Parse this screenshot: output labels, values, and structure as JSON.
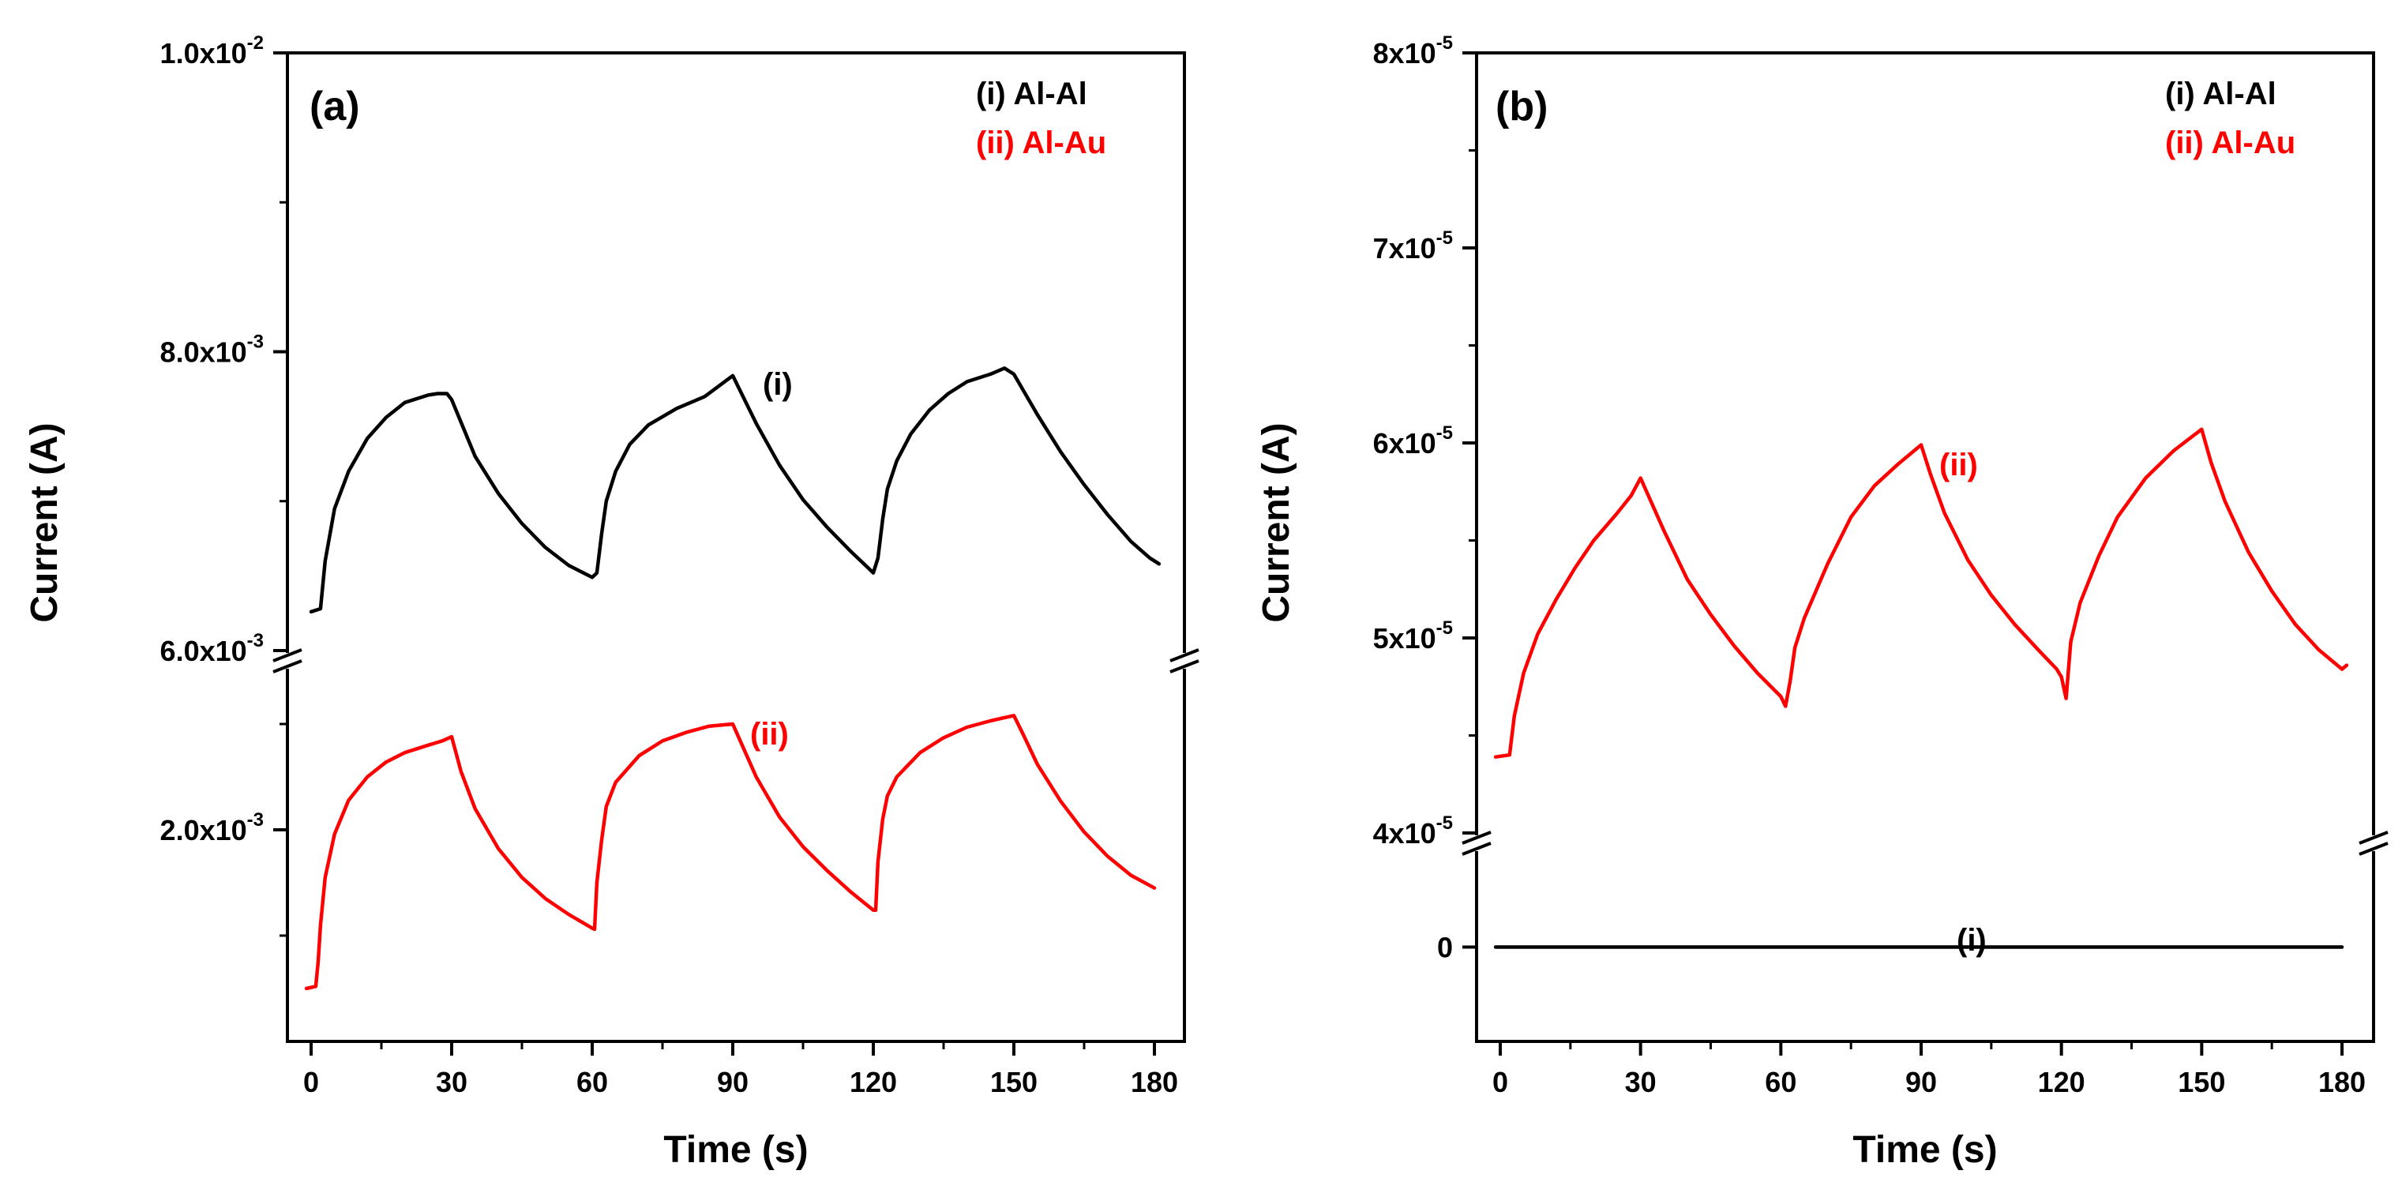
{
  "chart_data": [
    {
      "type": "line",
      "panel": "(a)",
      "xlabel": "Time (s)",
      "ylabel": "Current (A)",
      "x_ticks": [
        "0",
        "30",
        "60",
        "90",
        "120",
        "150",
        "180"
      ],
      "xlim": [
        -3,
        183
      ],
      "y_axis_break": true,
      "upper_segment": {
        "ylim": [
          0.006,
          0.01
        ],
        "tick_values": [
          0.006,
          0.008,
          0.01
        ],
        "tick_labels": [
          "6.0x10",
          "8.0x10",
          "1.0x10"
        ],
        "tick_exponents": [
          "-3",
          "-3",
          "-2"
        ]
      },
      "lower_segment": {
        "ylim": [
          0.0,
          0.0035
        ],
        "tick_values": [
          0.002
        ],
        "tick_labels": [
          "2.0x10"
        ],
        "tick_exponents": [
          "-3"
        ]
      },
      "legend": [
        {
          "label": "(i)  Al-Al",
          "color": "#000000"
        },
        {
          "label": "(ii) Al-Au",
          "color": "#ff0000"
        }
      ],
      "series": [
        {
          "name": "(i) Al-Al",
          "curve_label": "(i)",
          "color": "#000000",
          "segment": "upper",
          "x": [
            0,
            2,
            3,
            5,
            8,
            12,
            16,
            20,
            25,
            27,
            29,
            30,
            35,
            40,
            45,
            50,
            55,
            60,
            61,
            62,
            63,
            65,
            68,
            72,
            78,
            84,
            90,
            95,
            100,
            105,
            110,
            115,
            119,
            120,
            121,
            122,
            123,
            125,
            128,
            132,
            136,
            140,
            145,
            148,
            150,
            155,
            160,
            165,
            170,
            175,
            179,
            181
          ],
          "y": [
            0.00626,
            0.00628,
            0.0066,
            0.00695,
            0.0072,
            0.00742,
            0.00756,
            0.00766,
            0.00771,
            0.00772,
            0.00772,
            0.00768,
            0.0073,
            0.00705,
            0.00685,
            0.00669,
            0.00657,
            0.00649,
            0.00652,
            0.00678,
            0.007,
            0.0072,
            0.00738,
            0.00751,
            0.00762,
            0.0077,
            0.00784,
            0.00752,
            0.00724,
            0.00701,
            0.00683,
            0.00667,
            0.00655,
            0.00652,
            0.00662,
            0.00688,
            0.00708,
            0.00727,
            0.00745,
            0.00761,
            0.00772,
            0.0078,
            0.00785,
            0.00789,
            0.00785,
            0.00758,
            0.00733,
            0.00711,
            0.00691,
            0.00673,
            0.00662,
            0.00658
          ]
        },
        {
          "name": "(ii) Al-Au",
          "curve_label": "(ii)",
          "color": "#ff0000",
          "segment": "lower",
          "x": [
            -1,
            1,
            1.5,
            2,
            3,
            5,
            8,
            12,
            16,
            20,
            25,
            28,
            30,
            32,
            35,
            40,
            45,
            50,
            55,
            60,
            60.5,
            61,
            62,
            63,
            65,
            70,
            75,
            80,
            85,
            90,
            92,
            95,
            100,
            105,
            110,
            115,
            120,
            120.5,
            121,
            122,
            123,
            125,
            130,
            135,
            140,
            145,
            150,
            152,
            155,
            160,
            165,
            170,
            175,
            180
          ],
          "y": [
            0.0005,
            0.00052,
            0.00075,
            0.0011,
            0.00155,
            0.00196,
            0.00228,
            0.0025,
            0.00264,
            0.00273,
            0.0028,
            0.00284,
            0.00288,
            0.00255,
            0.0022,
            0.00182,
            0.00155,
            0.00135,
            0.0012,
            0.00107,
            0.00106,
            0.0015,
            0.0019,
            0.00222,
            0.00245,
            0.0027,
            0.00284,
            0.00292,
            0.00298,
            0.003,
            0.0028,
            0.0025,
            0.00212,
            0.00184,
            0.00162,
            0.00142,
            0.00124,
            0.00124,
            0.0017,
            0.0021,
            0.00232,
            0.0025,
            0.00273,
            0.00287,
            0.00297,
            0.00303,
            0.00308,
            0.0029,
            0.00262,
            0.00227,
            0.00198,
            0.00175,
            0.00157,
            0.00145
          ]
        }
      ]
    },
    {
      "type": "line",
      "panel": "(b)",
      "xlabel": "Time (s)",
      "ylabel": "Current (A)",
      "x_ticks": [
        "0",
        "30",
        "60",
        "90",
        "120",
        "150",
        "180"
      ],
      "xlim": [
        -3,
        183
      ],
      "y_axis_break": true,
      "upper_segment": {
        "ylim": [
          4e-05,
          8e-05
        ],
        "tick_values": [
          4e-05,
          5e-05,
          6e-05,
          7e-05,
          8e-05
        ],
        "tick_labels": [
          "4x10",
          "5x10",
          "6x10",
          "7x10",
          "8x10"
        ],
        "tick_exponents": [
          "-5",
          "-5",
          "-5",
          "-5",
          "-5"
        ]
      },
      "lower_segment": {
        "ylim": [
          -1,
          1
        ],
        "tick_values": [
          0
        ],
        "tick_labels": [
          "0"
        ],
        "tick_exponents": [
          ""
        ]
      },
      "legend": [
        {
          "label": "(i) Al-Al",
          "color": "#000000"
        },
        {
          "label": "(ii) Al-Au",
          "color": "#ff0000"
        }
      ],
      "series": [
        {
          "name": "(ii) Al-Au",
          "curve_label": "(ii)",
          "color": "#ff0000",
          "segment": "upper",
          "x": [
            -1,
            2,
            3,
            5,
            8,
            12,
            16,
            20,
            25,
            28,
            30,
            35,
            40,
            45,
            50,
            55,
            60,
            61,
            62,
            63,
            65,
            70,
            75,
            80,
            85,
            90,
            92,
            95,
            100,
            105,
            110,
            115,
            119,
            120,
            121,
            122,
            124,
            128,
            132,
            138,
            144,
            150,
            152,
            155,
            160,
            165,
            170,
            175,
            180,
            181
          ],
          "y": [
            4.39e-05,
            4.4e-05,
            4.6e-05,
            4.82e-05,
            5.02e-05,
            5.2e-05,
            5.36e-05,
            5.5e-05,
            5.64e-05,
            5.73e-05,
            5.82e-05,
            5.55e-05,
            5.3e-05,
            5.12e-05,
            4.96e-05,
            4.82e-05,
            4.7e-05,
            4.65e-05,
            4.78e-05,
            4.95e-05,
            5.1e-05,
            5.38e-05,
            5.62e-05,
            5.78e-05,
            5.89e-05,
            5.99e-05,
            5.84e-05,
            5.64e-05,
            5.4e-05,
            5.22e-05,
            5.07e-05,
            4.94e-05,
            4.84e-05,
            4.8e-05,
            4.69e-05,
            4.98e-05,
            5.18e-05,
            5.42e-05,
            5.62e-05,
            5.82e-05,
            5.96e-05,
            6.07e-05,
            5.9e-05,
            5.7e-05,
            5.44e-05,
            5.24e-05,
            5.07e-05,
            4.94e-05,
            4.84e-05,
            4.86e-05
          ]
        },
        {
          "name": "(i) Al-Al",
          "curve_label": "(i)",
          "color": "#000000",
          "segment": "lower",
          "x": [
            -1,
            180
          ],
          "y": [
            0,
            0
          ]
        }
      ]
    }
  ]
}
